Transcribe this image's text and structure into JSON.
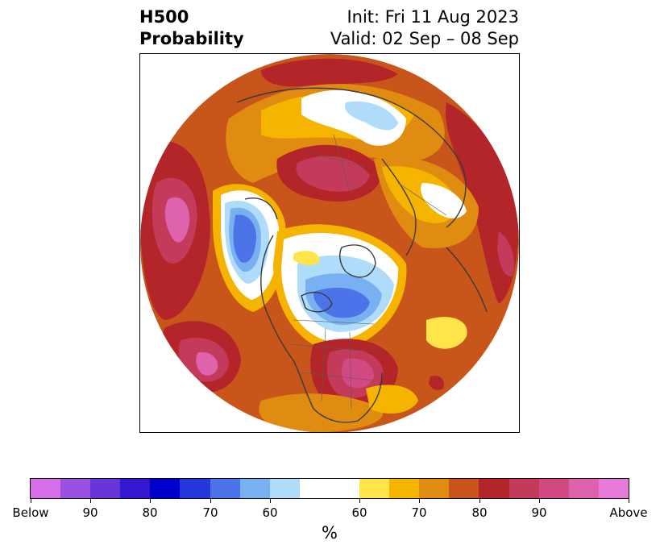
{
  "title": {
    "left_line1": "H500",
    "left_line2": "Probability",
    "right_line1": "Init: Fri 11 Aug 2023",
    "right_line2": "Valid: 02 Sep – 08 Sep"
  },
  "map": {
    "projection": "north-polar-stereographic",
    "dominant_pattern": "above-normal heights over most of the hemisphere; below-normal over western Canada/Alaska, Arctic Ocean and north Pacific; strongest above-normal over eastern US, Greenland/Barents region, Siberia and central Asia"
  },
  "colorbar": {
    "label": "%",
    "colors": [
      "#d56fe8",
      "#9a50e0",
      "#6934d8",
      "#3418d2",
      "#0000cc",
      "#2538dc",
      "#4c74e8",
      "#78b0f2",
      "#aedcfa",
      "#ffffff",
      "#ffe44a",
      "#f5b400",
      "#e08c10",
      "#c8561a",
      "#b4252a",
      "#c43a5a",
      "#d24a84",
      "#de62ac",
      "#e67ad8"
    ],
    "tick_labels": [
      "Below",
      "90",
      "80",
      "70",
      "60",
      "60",
      "70",
      "80",
      "90",
      "Above"
    ]
  },
  "colors": {
    "white": "#ffffff",
    "light_yellow": "#ffe44a",
    "yellow": "#f5b400",
    "orange": "#e08c10",
    "dark_orange": "#c8561a",
    "red": "#b4252a",
    "crimson": "#c43a5a",
    "pink": "#d24a84",
    "light_blue": "#aedcfa",
    "blue": "#78b0f2",
    "mid_blue": "#4c74e8",
    "coastline": "#3a3a3a"
  }
}
